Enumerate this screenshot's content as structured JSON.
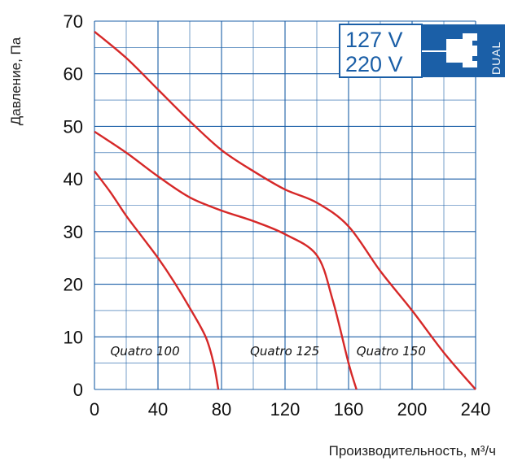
{
  "chart_data": {
    "type": "line",
    "xlabel": "Производительность, м³/ч",
    "ylabel": "Давление, Па",
    "xlim": [
      0,
      240
    ],
    "ylim": [
      0,
      70
    ],
    "x_ticks": [
      "0",
      "40",
      "80",
      "120",
      "160",
      "200",
      "240"
    ],
    "y_ticks": [
      "0",
      "10",
      "20",
      "30",
      "40",
      "50",
      "60",
      "70"
    ],
    "grid": true,
    "colors": {
      "grid": "#1b5fa7",
      "curve": "#d62828",
      "badge": "#1b5fa7"
    },
    "series": [
      {
        "name": "Quatro 100",
        "label_at": [
          10,
          6.5
        ],
        "points": [
          [
            0,
            41.5
          ],
          [
            10,
            37.5
          ],
          [
            20,
            33
          ],
          [
            30,
            29
          ],
          [
            40,
            25
          ],
          [
            50,
            20.5
          ],
          [
            60,
            15.5
          ],
          [
            70,
            10
          ],
          [
            75,
            5
          ],
          [
            78,
            0
          ]
        ]
      },
      {
        "name": "Quatro 125",
        "label_at": [
          98,
          6.5
        ],
        "points": [
          [
            0,
            49
          ],
          [
            20,
            45
          ],
          [
            40,
            40.5
          ],
          [
            60,
            36.5
          ],
          [
            80,
            34
          ],
          [
            100,
            32
          ],
          [
            120,
            29.5
          ],
          [
            140,
            25.5
          ],
          [
            150,
            17
          ],
          [
            160,
            5
          ],
          [
            165,
            0
          ]
        ]
      },
      {
        "name": "Quatro 150",
        "label_at": [
          165,
          6.5
        ],
        "points": [
          [
            0,
            68
          ],
          [
            20,
            63
          ],
          [
            40,
            57
          ],
          [
            60,
            51
          ],
          [
            80,
            45.5
          ],
          [
            100,
            41.5
          ],
          [
            120,
            38
          ],
          [
            140,
            35.5
          ],
          [
            160,
            31
          ],
          [
            180,
            22.5
          ],
          [
            200,
            15
          ],
          [
            220,
            7
          ],
          [
            240,
            0
          ]
        ]
      }
    ]
  },
  "badge": {
    "voltages": [
      "127 V",
      "220 V"
    ],
    "vertical_text": "DUAL",
    "icon": "power-plug-icon"
  }
}
